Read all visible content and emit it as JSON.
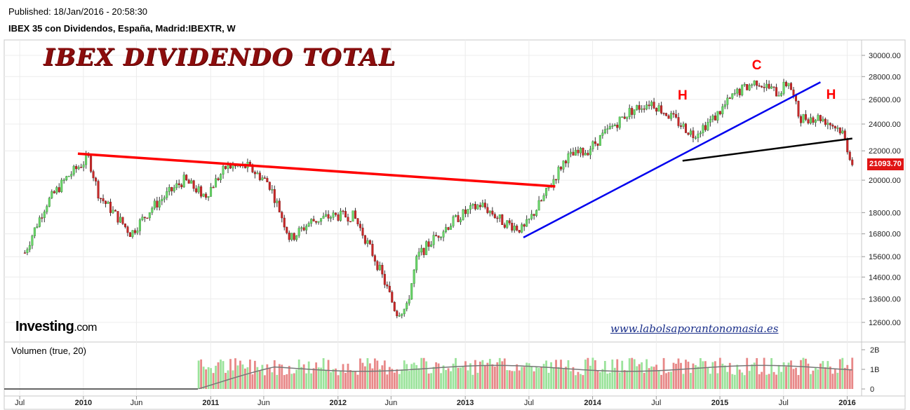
{
  "header": {
    "published": "Published: 18/Jan/2016 - 20:58:30",
    "symbol": "IBEX 35 con Dividendos, España, Madrid:IBEXTR, W"
  },
  "title_art": "IBEX DIVIDENDO TOTAL",
  "logo": {
    "brand": "Investing",
    "domain": ".com"
  },
  "website": "www.labolsaporantonomasia.es",
  "volume_label": "Volumen (true, 20)",
  "current_price": "21093.70",
  "colors": {
    "up": "#6ad66a",
    "down": "#e06060",
    "red_line": "#ff0000",
    "blue_line": "#0000ee",
    "black_line": "#000000",
    "price_tag": "#e01515"
  },
  "chart_data": {
    "type": "candlestick",
    "title": "",
    "x_ticks": [
      "Jul",
      "2010",
      "Jun",
      "2011",
      "Jun",
      "2012",
      "Jun",
      "2013",
      "Jul",
      "2014",
      "Jul",
      "2015",
      "Jul",
      "2016"
    ],
    "y_ticks": [
      "30000.00",
      "28000.00",
      "26000.00",
      "24000.00",
      "22000.00",
      "20000.00",
      "18000.00",
      "16800.00",
      "15600.00",
      "14600.00",
      "13600.00",
      "12600.00"
    ],
    "volume_ticks": [
      "2B",
      "1B",
      "0"
    ],
    "price_path": [
      [
        "2009-07",
        15800
      ],
      [
        "2009-09",
        18500
      ],
      [
        "2009-11",
        20200
      ],
      [
        "2010-01",
        21500
      ],
      [
        "2010-02",
        19000
      ],
      [
        "2010-05",
        16800
      ],
      [
        "2010-07",
        18300
      ],
      [
        "2010-10",
        20000
      ],
      [
        "2010-12",
        19000
      ],
      [
        "2011-02",
        20900
      ],
      [
        "2011-04",
        20900
      ],
      [
        "2011-06",
        19800
      ],
      [
        "2011-08",
        16500
      ],
      [
        "2011-10",
        17500
      ],
      [
        "2011-12",
        17800
      ],
      [
        "2012-02",
        17800
      ],
      [
        "2012-04",
        15500
      ],
      [
        "2012-06",
        13000
      ],
      [
        "2012-07",
        13200
      ],
      [
        "2012-08",
        15600
      ],
      [
        "2012-10",
        16800
      ],
      [
        "2012-12",
        17800
      ],
      [
        "2013-02",
        18500
      ],
      [
        "2013-04",
        17500
      ],
      [
        "2013-06",
        17000
      ],
      [
        "2013-08",
        19000
      ],
      [
        "2013-10",
        21500
      ],
      [
        "2013-12",
        22000
      ],
      [
        "2014-02",
        23500
      ],
      [
        "2014-04",
        25000
      ],
      [
        "2014-06",
        25800
      ],
      [
        "2014-08",
        24500
      ],
      [
        "2014-10",
        23200
      ],
      [
        "2014-12",
        24500
      ],
      [
        "2015-02",
        26500
      ],
      [
        "2015-04",
        27600
      ],
      [
        "2015-06",
        26500
      ],
      [
        "2015-07",
        27600
      ],
      [
        "2015-08",
        24500
      ],
      [
        "2015-10",
        24500
      ],
      [
        "2015-12",
        23500
      ],
      [
        "2016-01",
        21093.7
      ]
    ],
    "annotations": [
      {
        "label": "H",
        "date": "2014-09"
      },
      {
        "label": "C",
        "date": "2015-04"
      },
      {
        "label": "H",
        "date": "2015-11"
      }
    ],
    "lines": [
      {
        "name": "red_resistance",
        "color": "red",
        "from": [
          "2009-12",
          21800
        ],
        "to": [
          "2013-09",
          19600
        ]
      },
      {
        "name": "blue_trend",
        "color": "blue",
        "from": [
          "2013-06",
          16600
        ],
        "to": [
          "2015-10",
          27500
        ]
      },
      {
        "name": "black_neckline",
        "color": "black",
        "from": [
          "2014-09",
          21300
        ],
        "to": [
          "2016-01",
          22900
        ]
      }
    ],
    "volume_avg": "true, 20"
  }
}
